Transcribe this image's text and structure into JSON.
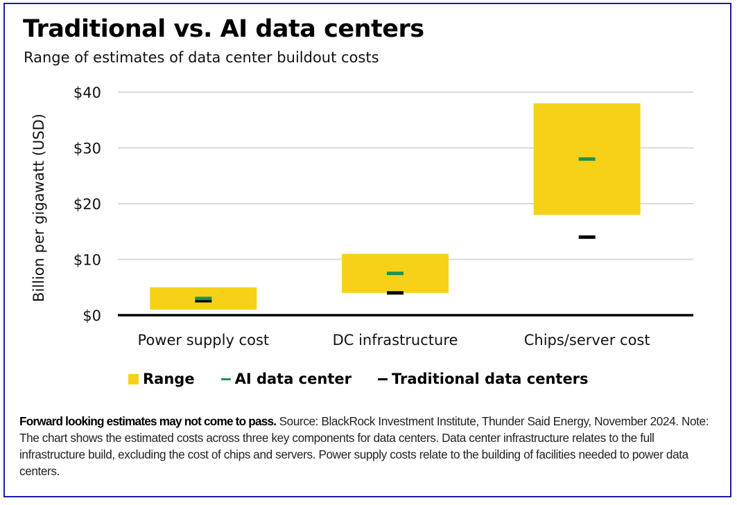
{
  "colors": {
    "range": "#f7d117",
    "ai": "#1e9150",
    "traditional": "#000000",
    "grid": "#d9d9d9",
    "frame": "#1a1aa8"
  },
  "chart_data": {
    "type": "range-bar",
    "title": "Traditional vs. AI data centers",
    "subtitle": "Range of estimates of data center buildout costs",
    "xlabel": "",
    "ylabel": "Billion per gigawatt (USD)",
    "ylim": [
      0,
      40
    ],
    "yticks": [
      0,
      10,
      20,
      30,
      40
    ],
    "ytick_labels": [
      "$0",
      "$10",
      "$20",
      "$30",
      "$40"
    ],
    "grid": true,
    "categories": [
      "Power supply cost",
      "DC infrastructure",
      "Chips/server cost"
    ],
    "series": [
      {
        "name": "Range",
        "type": "range",
        "low": [
          1,
          4,
          18
        ],
        "high": [
          5,
          11,
          38
        ]
      },
      {
        "name": "AI data center",
        "type": "marker",
        "values": [
          3,
          7.5,
          28
        ]
      },
      {
        "name": "Traditional data centers",
        "type": "marker",
        "values": [
          2.6,
          4,
          14
        ]
      }
    ],
    "legend": {
      "position": "bottom",
      "entries": [
        "Range",
        "AI data center",
        "Traditional data centers"
      ]
    }
  },
  "footnote": {
    "bold": "Forward looking estimates may not come to pass.",
    "text": " Source: BlackRock Investment Institute, Thunder Said Energy, November 2024. Note: The chart shows the estimated costs across three key components for data centers. Data center infrastructure relates to the full infrastructure build, excluding the cost of chips and servers. Power supply costs relate to the building of facilities needed to power data centers."
  }
}
